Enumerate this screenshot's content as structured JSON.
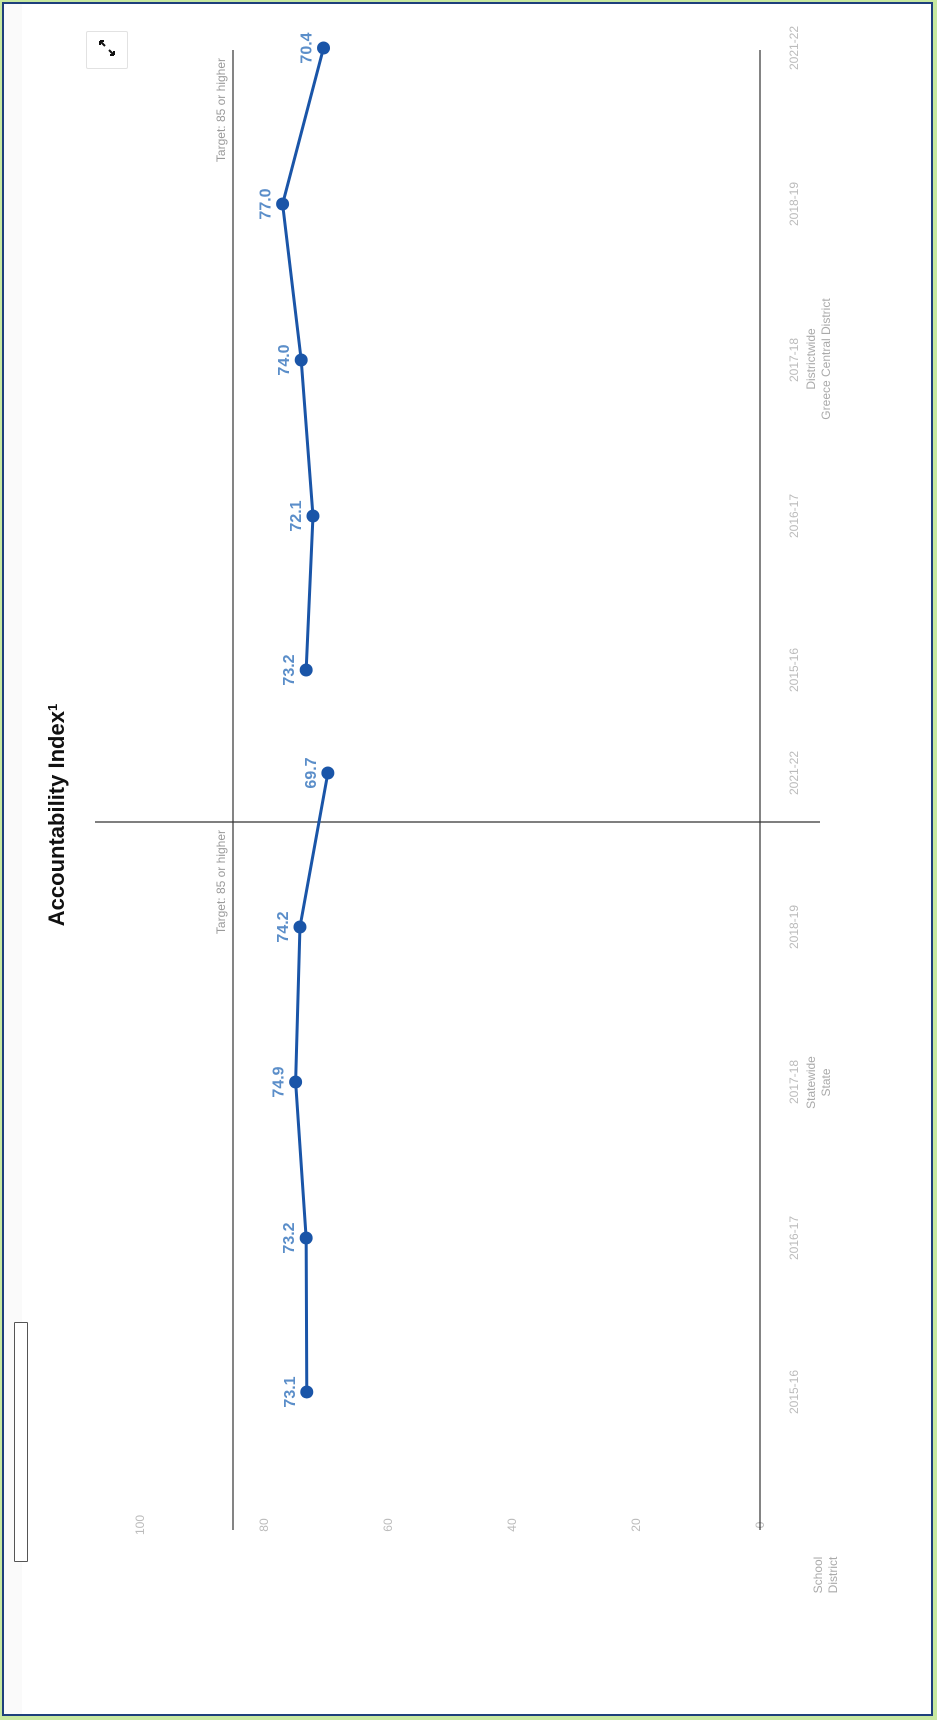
{
  "chart_data": {
    "type": "line",
    "title": "Accountability Index",
    "title_superscript": "1",
    "y_ticks": [
      "0",
      "20",
      "40",
      "60",
      "80",
      "100"
    ],
    "ylim": [
      0,
      100
    ],
    "y_axis_group_label": [
      "School",
      "District"
    ],
    "target": {
      "value": 85,
      "label": "Target: 85 or higher"
    },
    "series_color": "#1a55a8",
    "label_color": "#5b8ec9",
    "panels": [
      {
        "group_label": [
          "Statewide",
          "State"
        ],
        "categories": [
          "2015-16",
          "2016-17",
          "2017-18",
          "2018-19",
          "2021-22"
        ],
        "values": [
          73.1,
          73.2,
          74.9,
          74.2,
          69.7
        ],
        "labels": [
          "73.1",
          "73.2",
          "74.9",
          "74.2",
          "69.7"
        ]
      },
      {
        "group_label": [
          "Districtwide",
          "Greece Central District"
        ],
        "categories": [
          "2015-16",
          "2016-17",
          "2017-18",
          "2018-19",
          "2021-22"
        ],
        "values": [
          73.2,
          72.1,
          74.0,
          77.0,
          70.4
        ],
        "labels": [
          "73.2",
          "72.1",
          "74.0",
          "77.0",
          "70.4"
        ]
      }
    ]
  },
  "toolbar": {
    "expand_icon": "expand-arrows-icon"
  }
}
